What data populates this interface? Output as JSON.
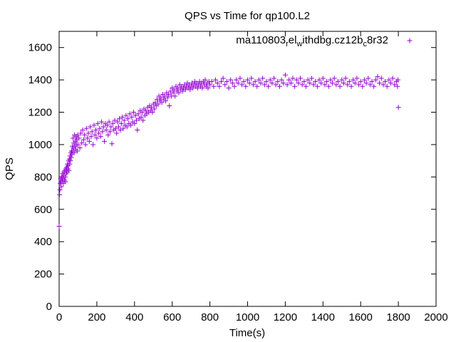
{
  "chart_data": {
    "type": "scatter",
    "title": "QPS vs Time for qp100.L2",
    "xlabel": "Time(s)",
    "ylabel": "QPS",
    "xlim": [
      0,
      2000
    ],
    "ylim": [
      0,
      1700
    ],
    "xticks": [
      0,
      200,
      400,
      600,
      800,
      1000,
      1200,
      1400,
      1600,
      1800,
      2000
    ],
    "yticks": [
      0,
      200,
      400,
      600,
      800,
      1000,
      1200,
      1400,
      1600
    ],
    "grid": false,
    "legend_placement": "top-right",
    "legend": {
      "parts": [
        "ma110803",
        "r",
        "el",
        "w",
        "ithdbg.cz12b",
        "c",
        "8r32"
      ]
    },
    "series": [
      {
        "color": "#9400d3",
        "marker": "plus",
        "points": [
          [
            0,
            495
          ],
          [
            2,
            690
          ],
          [
            4,
            720
          ],
          [
            6,
            760
          ],
          [
            8,
            790
          ],
          [
            10,
            770
          ],
          [
            12,
            740
          ],
          [
            14,
            800
          ],
          [
            16,
            780
          ],
          [
            18,
            820
          ],
          [
            20,
            790
          ],
          [
            22,
            760
          ],
          [
            24,
            810
          ],
          [
            26,
            830
          ],
          [
            28,
            780
          ],
          [
            30,
            840
          ],
          [
            32,
            800
          ],
          [
            34,
            770
          ],
          [
            36,
            850
          ],
          [
            38,
            820
          ],
          [
            40,
            860
          ],
          [
            42,
            830
          ],
          [
            44,
            880
          ],
          [
            46,
            850
          ],
          [
            48,
            870
          ],
          [
            50,
            900
          ],
          [
            52,
            840
          ],
          [
            54,
            910
          ],
          [
            56,
            880
          ],
          [
            58,
            930
          ],
          [
            60,
            900
          ],
          [
            62,
            950
          ],
          [
            64,
            920
          ],
          [
            66,
            960
          ],
          [
            68,
            940
          ],
          [
            70,
            990
          ],
          [
            72,
            960
          ],
          [
            74,
            1040
          ],
          [
            76,
            980
          ],
          [
            78,
            1010
          ],
          [
            80,
            950
          ],
          [
            82,
            1060
          ],
          [
            84,
            990
          ],
          [
            86,
            1020
          ],
          [
            88,
            970
          ],
          [
            90,
            1050
          ],
          [
            92,
            1000
          ],
          [
            94,
            1030
          ],
          [
            96,
            960
          ],
          [
            98,
            1060
          ],
          [
            100,
            1000
          ],
          [
            105,
            1040
          ],
          [
            110,
            980
          ],
          [
            115,
            1070
          ],
          [
            120,
            1010
          ],
          [
            125,
            1090
          ],
          [
            130,
            1030
          ],
          [
            135,
            1060
          ],
          [
            140,
            1000
          ],
          [
            145,
            1100
          ],
          [
            150,
            1040
          ],
          [
            155,
            1070
          ],
          [
            160,
            1020
          ],
          [
            165,
            1110
          ],
          [
            170,
            1050
          ],
          [
            175,
            1080
          ],
          [
            180,
            1000
          ],
          [
            185,
            1120
          ],
          [
            190,
            1060
          ],
          [
            195,
            1090
          ],
          [
            200,
            1040
          ],
          [
            205,
            1130
          ],
          [
            210,
            1070
          ],
          [
            215,
            1100
          ],
          [
            220,
            1050
          ],
          [
            225,
            1140
          ],
          [
            230,
            1080
          ],
          [
            235,
            1110
          ],
          [
            240,
            1020
          ],
          [
            245,
            1130
          ],
          [
            250,
            1090
          ],
          [
            255,
            1120
          ],
          [
            260,
            1060
          ],
          [
            265,
            1140
          ],
          [
            270,
            1080
          ],
          [
            275,
            1110
          ],
          [
            280,
            1005
          ],
          [
            285,
            1130
          ],
          [
            290,
            1090
          ],
          [
            295,
            1150
          ],
          [
            300,
            1100
          ],
          [
            305,
            1070
          ],
          [
            310,
            1140
          ],
          [
            315,
            1110
          ],
          [
            320,
            1160
          ],
          [
            325,
            1090
          ],
          [
            330,
            1130
          ],
          [
            335,
            1170
          ],
          [
            340,
            1100
          ],
          [
            345,
            1150
          ],
          [
            350,
            1120
          ],
          [
            355,
            1180
          ],
          [
            360,
            1110
          ],
          [
            365,
            1160
          ],
          [
            370,
            1130
          ],
          [
            375,
            1190
          ],
          [
            380,
            1120
          ],
          [
            385,
            1170
          ],
          [
            390,
            1140
          ],
          [
            395,
            1200
          ],
          [
            400,
            1130
          ],
          [
            405,
            1180
          ],
          [
            410,
            1150
          ],
          [
            415,
            1090
          ],
          [
            420,
            1190
          ],
          [
            425,
            1160
          ],
          [
            430,
            1210
          ],
          [
            435,
            1170
          ],
          [
            440,
            1200
          ],
          [
            445,
            1150
          ],
          [
            450,
            1220
          ],
          [
            455,
            1180
          ],
          [
            460,
            1210
          ],
          [
            465,
            1190
          ],
          [
            470,
            1230
          ],
          [
            475,
            1200
          ],
          [
            480,
            1240
          ],
          [
            485,
            1210
          ],
          [
            490,
            1230
          ],
          [
            495,
            1200
          ],
          [
            500,
            1250
          ],
          [
            505,
            1220
          ],
          [
            510,
            1260
          ],
          [
            515,
            1240
          ],
          [
            520,
            1280
          ],
          [
            525,
            1250
          ],
          [
            530,
            1300
          ],
          [
            535,
            1270
          ],
          [
            540,
            1290
          ],
          [
            545,
            1260
          ],
          [
            550,
            1310
          ],
          [
            555,
            1280
          ],
          [
            560,
            1300
          ],
          [
            565,
            1270
          ],
          [
            570,
            1320
          ],
          [
            575,
            1290
          ],
          [
            580,
            1310
          ],
          [
            585,
            1240
          ],
          [
            590,
            1330
          ],
          [
            595,
            1300
          ],
          [
            600,
            1350
          ],
          [
            605,
            1320
          ],
          [
            610,
            1340
          ],
          [
            615,
            1300
          ],
          [
            620,
            1360
          ],
          [
            625,
            1330
          ],
          [
            630,
            1350
          ],
          [
            635,
            1320
          ],
          [
            640,
            1370
          ],
          [
            645,
            1340
          ],
          [
            650,
            1360
          ],
          [
            655,
            1330
          ],
          [
            660,
            1350
          ],
          [
            665,
            1370
          ],
          [
            670,
            1340
          ],
          [
            675,
            1360
          ],
          [
            680,
            1380
          ],
          [
            685,
            1350
          ],
          [
            690,
            1370
          ],
          [
            695,
            1340
          ],
          [
            700,
            1360
          ],
          [
            705,
            1380
          ],
          [
            710,
            1350
          ],
          [
            715,
            1370
          ],
          [
            720,
            1390
          ],
          [
            725,
            1360
          ],
          [
            730,
            1380
          ],
          [
            735,
            1350
          ],
          [
            740,
            1370
          ],
          [
            745,
            1390
          ],
          [
            750,
            1360
          ],
          [
            755,
            1380
          ],
          [
            760,
            1350
          ],
          [
            765,
            1390
          ],
          [
            770,
            1370
          ],
          [
            775,
            1400
          ],
          [
            780,
            1360
          ],
          [
            785,
            1380
          ],
          [
            790,
            1350
          ],
          [
            795,
            1390
          ],
          [
            800,
            1370
          ],
          [
            810,
            1390
          ],
          [
            820,
            1360
          ],
          [
            830,
            1400
          ],
          [
            840,
            1380
          ],
          [
            850,
            1360
          ],
          [
            860,
            1390
          ],
          [
            870,
            1410
          ],
          [
            880,
            1370
          ],
          [
            890,
            1390
          ],
          [
            900,
            1350
          ],
          [
            910,
            1400
          ],
          [
            920,
            1380
          ],
          [
            930,
            1360
          ],
          [
            940,
            1400
          ],
          [
            950,
            1380
          ],
          [
            960,
            1410
          ],
          [
            970,
            1370
          ],
          [
            980,
            1390
          ],
          [
            990,
            1360
          ],
          [
            1000,
            1400
          ],
          [
            1010,
            1380
          ],
          [
            1020,
            1410
          ],
          [
            1030,
            1370
          ],
          [
            1040,
            1390
          ],
          [
            1050,
            1360
          ],
          [
            1060,
            1400
          ],
          [
            1070,
            1380
          ],
          [
            1080,
            1410
          ],
          [
            1090,
            1370
          ],
          [
            1100,
            1390
          ],
          [
            1110,
            1360
          ],
          [
            1120,
            1400
          ],
          [
            1130,
            1380
          ],
          [
            1140,
            1410
          ],
          [
            1150,
            1370
          ],
          [
            1160,
            1390
          ],
          [
            1170,
            1360
          ],
          [
            1180,
            1400
          ],
          [
            1190,
            1380
          ],
          [
            1200,
            1430
          ],
          [
            1210,
            1370
          ],
          [
            1220,
            1400
          ],
          [
            1230,
            1380
          ],
          [
            1240,
            1410
          ],
          [
            1250,
            1360
          ],
          [
            1260,
            1400
          ],
          [
            1270,
            1380
          ],
          [
            1280,
            1410
          ],
          [
            1290,
            1370
          ],
          [
            1300,
            1390
          ],
          [
            1310,
            1360
          ],
          [
            1320,
            1400
          ],
          [
            1330,
            1380
          ],
          [
            1340,
            1410
          ],
          [
            1350,
            1370
          ],
          [
            1360,
            1390
          ],
          [
            1370,
            1360
          ],
          [
            1380,
            1400
          ],
          [
            1390,
            1380
          ],
          [
            1400,
            1410
          ],
          [
            1410,
            1370
          ],
          [
            1420,
            1390
          ],
          [
            1430,
            1360
          ],
          [
            1440,
            1400
          ],
          [
            1450,
            1380
          ],
          [
            1460,
            1410
          ],
          [
            1470,
            1370
          ],
          [
            1480,
            1390
          ],
          [
            1490,
            1360
          ],
          [
            1500,
            1400
          ],
          [
            1510,
            1380
          ],
          [
            1520,
            1410
          ],
          [
            1530,
            1370
          ],
          [
            1540,
            1390
          ],
          [
            1550,
            1360
          ],
          [
            1560,
            1400
          ],
          [
            1570,
            1380
          ],
          [
            1580,
            1410
          ],
          [
            1590,
            1370
          ],
          [
            1600,
            1390
          ],
          [
            1610,
            1360
          ],
          [
            1620,
            1400
          ],
          [
            1630,
            1380
          ],
          [
            1640,
            1410
          ],
          [
            1650,
            1370
          ],
          [
            1660,
            1390
          ],
          [
            1670,
            1360
          ],
          [
            1680,
            1400
          ],
          [
            1690,
            1420
          ],
          [
            1700,
            1380
          ],
          [
            1710,
            1410
          ],
          [
            1720,
            1370
          ],
          [
            1730,
            1390
          ],
          [
            1740,
            1360
          ],
          [
            1750,
            1400
          ],
          [
            1760,
            1380
          ],
          [
            1770,
            1410
          ],
          [
            1780,
            1370
          ],
          [
            1790,
            1390
          ],
          [
            1795,
            1360
          ],
          [
            1798,
            1400
          ],
          [
            1800,
            1230
          ]
        ]
      }
    ]
  }
}
